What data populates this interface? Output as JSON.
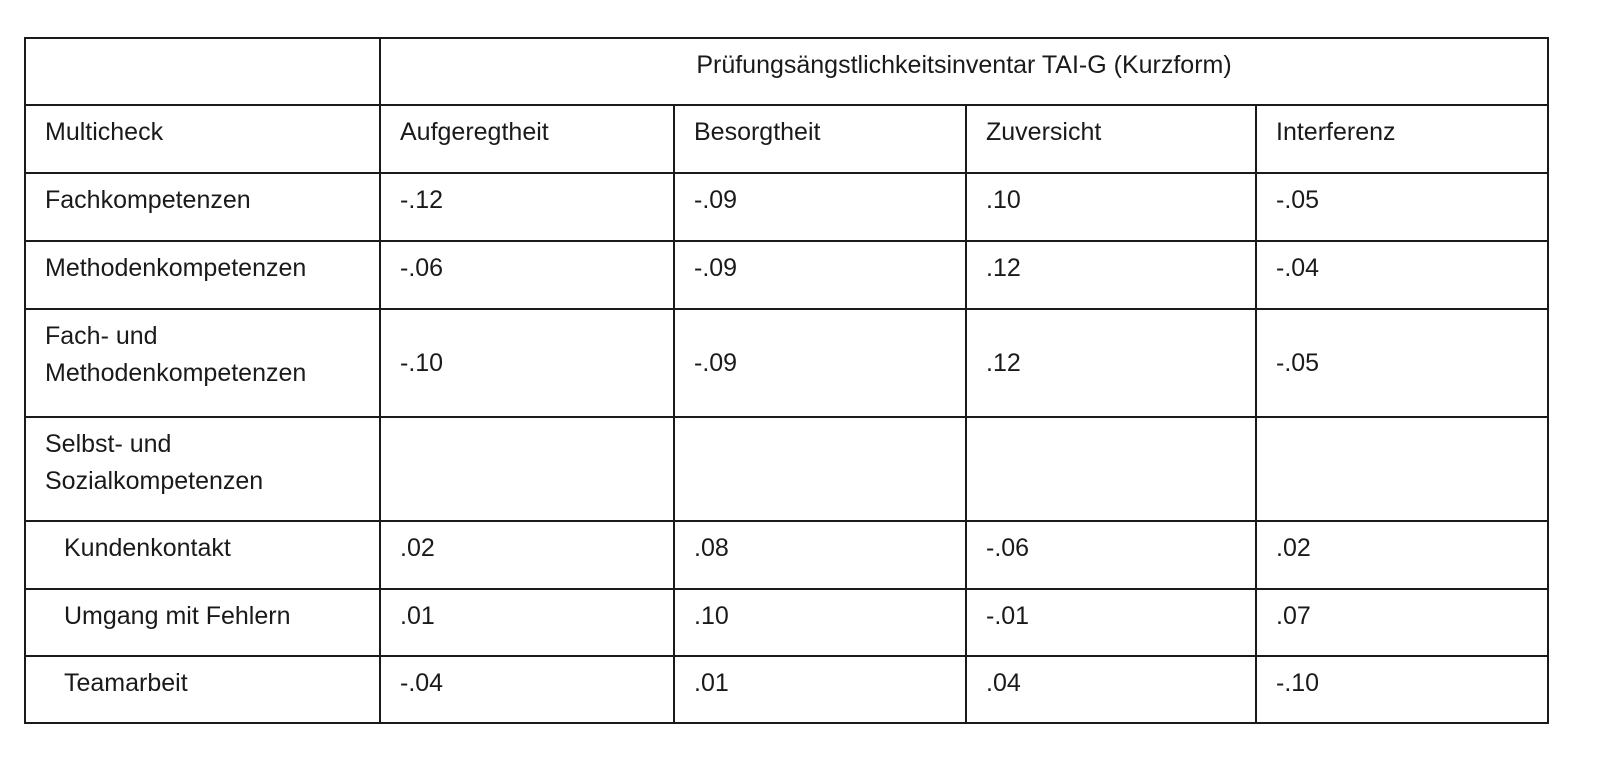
{
  "table": {
    "group_header": "Prüfungsängstlichkeitsinventar TAI-G (Kurzform)",
    "row_header": "Multicheck",
    "columns": [
      "Aufgeregtheit",
      "Besorgtheit",
      "Zuversicht",
      "Interferenz"
    ],
    "rows": [
      {
        "label": "Fachkompetenzen",
        "values": [
          "-.12",
          "-.09",
          ".10",
          "-.05"
        ]
      },
      {
        "label": "Methodenkompetenzen",
        "values": [
          "-.06",
          "-.09",
          ".12",
          "-.04"
        ]
      },
      {
        "label": "Fach- und Methodenkompetenzen",
        "label_lines": [
          "Fach- und",
          "Methodenkompetenzen"
        ],
        "values": [
          "-.10",
          "-.09",
          ".12",
          "-.05"
        ]
      },
      {
        "label": "Selbst- und Sozialkompetenzen",
        "label_lines": [
          "Selbst- und",
          "Sozialkompetenzen"
        ],
        "values": [
          "",
          "",
          "",
          ""
        ]
      },
      {
        "label": "Kundenkontakt",
        "indent": true,
        "values": [
          ".02",
          ".08",
          "-.06",
          ".02"
        ]
      },
      {
        "label": "Umgang mit Fehlern",
        "indent": true,
        "values": [
          ".01",
          ".10",
          "-.01",
          ".07"
        ]
      },
      {
        "label": "Teamarbeit",
        "indent": true,
        "values": [
          "-.04",
          ".01",
          ".04",
          "-.10"
        ]
      }
    ]
  }
}
